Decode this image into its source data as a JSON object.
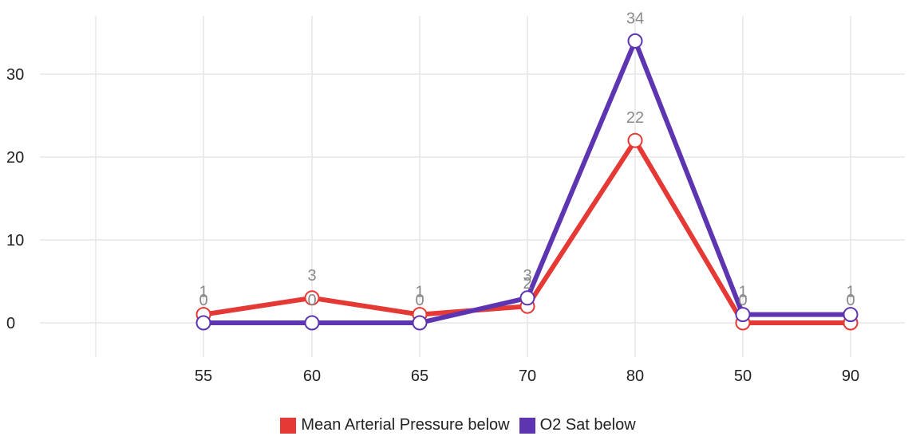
{
  "chart_data": {
    "type": "line",
    "categories": [
      "55",
      "60",
      "65",
      "70",
      "80",
      "50",
      "90"
    ],
    "yticks": [
      "0",
      "10",
      "20",
      "30"
    ],
    "ylim": [
      -4,
      37
    ],
    "grid": true,
    "legend_position": "bottom",
    "series": [
      {
        "name": "Mean Arterial Pressure below",
        "color": "#e53935",
        "values": [
          1,
          3,
          1,
          2,
          22,
          0,
          0
        ]
      },
      {
        "name": "O2 Sat below",
        "color": "#5e35b1",
        "values": [
          0,
          0,
          0,
          3,
          34,
          1,
          1
        ]
      }
    ]
  }
}
